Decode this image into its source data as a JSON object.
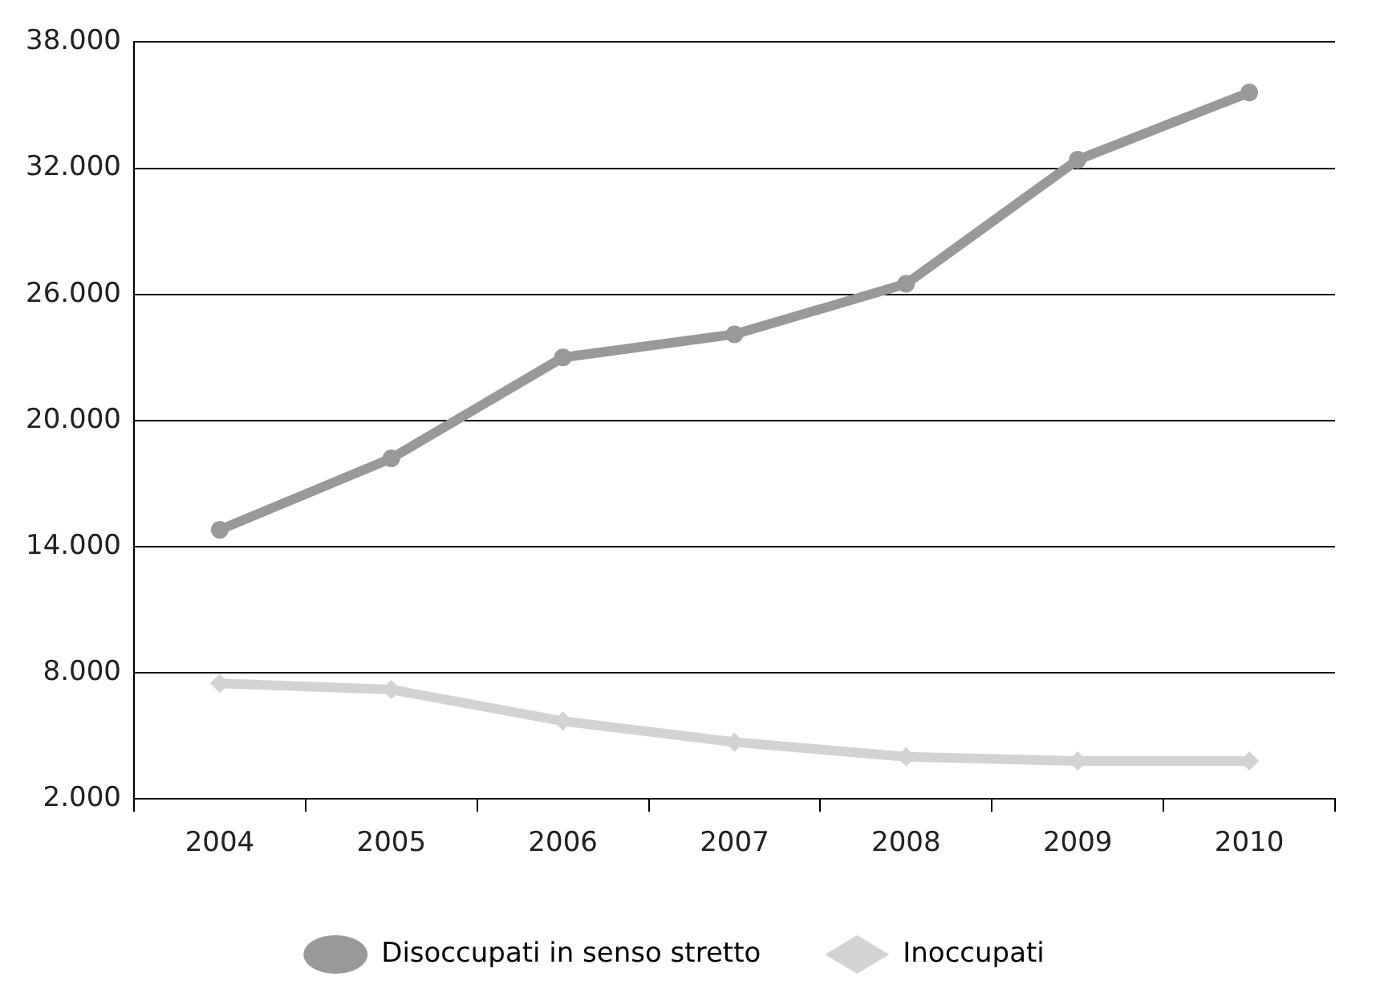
{
  "chart_data": {
    "type": "line",
    "categories": [
      "2004",
      "2005",
      "2006",
      "2007",
      "2008",
      "2009",
      "2010"
    ],
    "series": [
      {
        "name": "Disoccupati in senso stretto",
        "color": "#999999",
        "marker": "circle",
        "values": [
          14800,
          18200,
          23000,
          24100,
          26500,
          32400,
          35600
        ]
      },
      {
        "name": "Inoccupati",
        "color": "#d3d3d3",
        "marker": "diamond",
        "values": [
          7500,
          7200,
          5700,
          4700,
          4000,
          3800,
          3800
        ]
      }
    ],
    "ylim": [
      2000,
      38000
    ],
    "yticks": [
      {
        "value": 2000,
        "label": "2.000"
      },
      {
        "value": 8000,
        "label": "8.000"
      },
      {
        "value": 14000,
        "label": "14.000"
      },
      {
        "value": 20000,
        "label": "20.000"
      },
      {
        "value": 26000,
        "label": "26.000"
      },
      {
        "value": 32000,
        "label": "32.000"
      },
      {
        "value": 38000,
        "label": "38.000"
      }
    ],
    "grid": "y",
    "legend": "bottom",
    "line_style": "solid"
  }
}
